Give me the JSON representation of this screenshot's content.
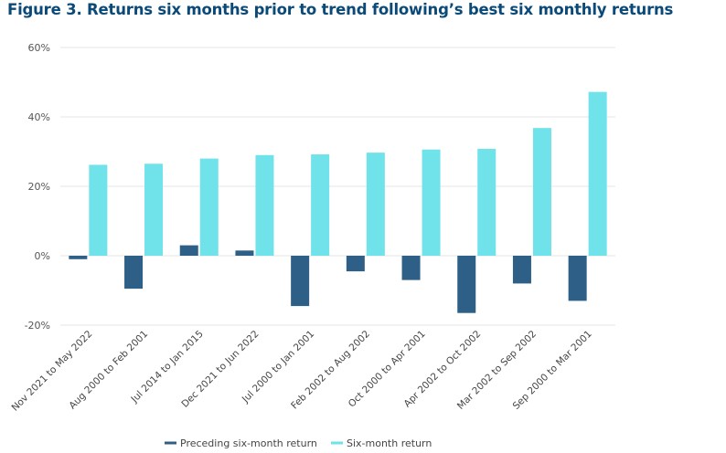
{
  "title": "Figure 3. Returns six months prior to trend following’s best six monthly returns",
  "chart_data": {
    "type": "bar",
    "categories": [
      "Nov 2021 to May 2022",
      "Aug 2000 to Feb 2001",
      "Jul 2014 to Jan 2015",
      "Dec 2021 to Jun 2022",
      "Jul 2000 to Jan 2001",
      "Feb 2002 to Aug 2002",
      "Oct 2000 to Apr 2001",
      "Apr 2002 to Oct 2002",
      "Mar 2002 to Sep 2002",
      "Sep 2000 to Mar 2001"
    ],
    "series": [
      {
        "name": "Preceding six-month return",
        "color": "#2e5f86",
        "values": [
          -1,
          -9.5,
          3,
          1.5,
          -14.5,
          -4.5,
          -7,
          -16.5,
          -8,
          -13
        ]
      },
      {
        "name": "Six-month return",
        "color": "#6fe2ea",
        "values": [
          26.2,
          26.5,
          28,
          29,
          29.2,
          29.7,
          30.6,
          30.8,
          36.8,
          47.2
        ]
      }
    ],
    "ylim": [
      -20,
      60
    ],
    "yticks": [
      -20,
      0,
      20,
      40,
      60
    ],
    "ytick_labels": [
      "-20%",
      "0%",
      "20%",
      "40%",
      "60%"
    ],
    "grid": true,
    "legend_position": "bottom"
  }
}
